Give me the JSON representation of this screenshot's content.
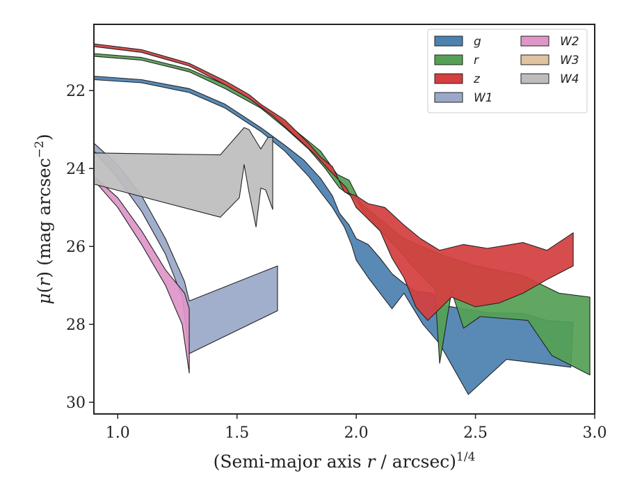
{
  "chart_data": {
    "type": "area",
    "title": "",
    "xlabel": "(Semi-major axis r / arcsec)^1/4",
    "ylabel": "μ(r) (mag arcsec^−2)",
    "xlim": [
      0.9,
      3.0
    ],
    "ylim": [
      30.3,
      20.3
    ],
    "y_inverted": true,
    "grid": false,
    "legend": {
      "placement": "upper-right",
      "columns": 2
    },
    "x_ticks": [
      "1.0",
      "1.5",
      "2.0",
      "2.5",
      "3.0"
    ],
    "y_ticks": [
      "22",
      "24",
      "26",
      "28",
      "30"
    ],
    "series": [
      {
        "name": "g",
        "color": "#4c81b0",
        "upper": [
          [
            0.9,
            21.63
          ],
          [
            1.1,
            21.72
          ],
          [
            1.3,
            21.95
          ],
          [
            1.45,
            22.35
          ],
          [
            1.6,
            22.95
          ],
          [
            1.7,
            23.4
          ],
          [
            1.78,
            23.78
          ],
          [
            1.85,
            24.25
          ],
          [
            1.9,
            24.7
          ],
          [
            1.93,
            25.15
          ],
          [
            1.97,
            25.45
          ],
          [
            2.0,
            25.8
          ],
          [
            2.05,
            25.95
          ],
          [
            2.1,
            26.3
          ],
          [
            2.15,
            26.7
          ],
          [
            2.2,
            26.95
          ],
          [
            2.25,
            27.15
          ],
          [
            2.32,
            27.2
          ],
          [
            2.35,
            27.5
          ],
          [
            2.45,
            27.6
          ],
          [
            2.55,
            27.7
          ],
          [
            2.7,
            27.72
          ],
          [
            2.8,
            27.9
          ],
          [
            2.91,
            27.95
          ]
        ],
        "lower": [
          [
            0.9,
            21.72
          ],
          [
            1.1,
            21.8
          ],
          [
            1.3,
            22.05
          ],
          [
            1.45,
            22.45
          ],
          [
            1.6,
            23.05
          ],
          [
            1.7,
            23.55
          ],
          [
            1.8,
            24.2
          ],
          [
            1.85,
            24.6
          ],
          [
            1.9,
            25.0
          ],
          [
            1.95,
            25.5
          ],
          [
            1.98,
            25.95
          ],
          [
            2.0,
            26.35
          ],
          [
            2.05,
            26.8
          ],
          [
            2.1,
            27.2
          ],
          [
            2.15,
            27.6
          ],
          [
            2.2,
            27.2
          ],
          [
            2.28,
            28.0
          ],
          [
            2.35,
            28.5
          ],
          [
            2.47,
            29.8
          ],
          [
            2.63,
            28.9
          ],
          [
            2.9,
            29.1
          ]
        ]
      },
      {
        "name": "r",
        "color": "#55a055",
        "upper": [
          [
            0.9,
            21.05
          ],
          [
            1.1,
            21.15
          ],
          [
            1.3,
            21.45
          ],
          [
            1.45,
            21.85
          ],
          [
            1.55,
            22.2
          ],
          [
            1.65,
            22.6
          ],
          [
            1.75,
            23.05
          ],
          [
            1.85,
            23.55
          ],
          [
            1.92,
            24.15
          ],
          [
            1.97,
            24.3
          ],
          [
            2.02,
            24.9
          ],
          [
            2.1,
            25.3
          ],
          [
            2.2,
            25.8
          ],
          [
            2.35,
            26.2
          ],
          [
            2.5,
            26.5
          ],
          [
            2.7,
            26.75
          ],
          [
            2.85,
            27.2
          ],
          [
            2.98,
            27.3
          ]
        ],
        "lower": [
          [
            0.9,
            21.12
          ],
          [
            1.1,
            21.22
          ],
          [
            1.3,
            21.52
          ],
          [
            1.45,
            21.95
          ],
          [
            1.6,
            22.45
          ],
          [
            1.7,
            22.95
          ],
          [
            1.8,
            23.5
          ],
          [
            1.87,
            24.0
          ],
          [
            1.93,
            24.5
          ],
          [
            2.0,
            24.8
          ],
          [
            2.05,
            25.3
          ],
          [
            2.1,
            25.6
          ],
          [
            2.18,
            26.1
          ],
          [
            2.25,
            26.6
          ],
          [
            2.33,
            27.1
          ],
          [
            2.35,
            29.0
          ],
          [
            2.4,
            27.15
          ],
          [
            2.45,
            28.1
          ],
          [
            2.52,
            27.8
          ],
          [
            2.72,
            27.9
          ],
          [
            2.82,
            28.8
          ],
          [
            2.98,
            29.3
          ]
        ]
      },
      {
        "name": "z",
        "color": "#d43f3f",
        "upper": [
          [
            0.9,
            20.8
          ],
          [
            1.1,
            20.95
          ],
          [
            1.3,
            21.3
          ],
          [
            1.45,
            21.75
          ],
          [
            1.55,
            22.1
          ],
          [
            1.6,
            22.35
          ],
          [
            1.65,
            22.55
          ],
          [
            1.7,
            22.75
          ],
          [
            1.75,
            23.05
          ],
          [
            1.8,
            23.35
          ],
          [
            1.85,
            23.7
          ],
          [
            1.9,
            23.95
          ],
          [
            1.95,
            24.6
          ],
          [
            2.0,
            24.7
          ],
          [
            2.05,
            24.9
          ],
          [
            2.12,
            25.0
          ],
          [
            2.2,
            25.45
          ],
          [
            2.27,
            25.8
          ],
          [
            2.35,
            26.1
          ],
          [
            2.45,
            25.95
          ],
          [
            2.55,
            26.05
          ],
          [
            2.7,
            25.9
          ],
          [
            2.8,
            26.1
          ],
          [
            2.91,
            25.65
          ]
        ],
        "lower": [
          [
            0.9,
            20.87
          ],
          [
            1.1,
            21.02
          ],
          [
            1.3,
            21.37
          ],
          [
            1.45,
            21.85
          ],
          [
            1.55,
            22.2
          ],
          [
            1.65,
            22.65
          ],
          [
            1.75,
            23.2
          ],
          [
            1.82,
            23.6
          ],
          [
            1.88,
            24.0
          ],
          [
            1.92,
            24.25
          ],
          [
            1.96,
            24.5
          ],
          [
            2.0,
            25.0
          ],
          [
            2.05,
            25.3
          ],
          [
            2.1,
            25.6
          ],
          [
            2.15,
            26.3
          ],
          [
            2.2,
            26.8
          ],
          [
            2.25,
            27.55
          ],
          [
            2.3,
            27.9
          ],
          [
            2.4,
            27.3
          ],
          [
            2.5,
            27.55
          ],
          [
            2.6,
            27.45
          ],
          [
            2.7,
            27.2
          ],
          [
            2.8,
            26.85
          ],
          [
            2.91,
            26.5
          ]
        ]
      },
      {
        "name": "W1",
        "color": "#9aa9c8",
        "upper": [
          [
            0.9,
            23.35
          ],
          [
            1.0,
            23.9
          ],
          [
            1.1,
            24.7
          ],
          [
            1.2,
            25.8
          ],
          [
            1.28,
            26.9
          ],
          [
            1.3,
            27.4
          ],
          [
            1.67,
            26.5
          ]
        ],
        "lower": [
          [
            0.9,
            23.55
          ],
          [
            1.0,
            24.25
          ],
          [
            1.1,
            25.1
          ],
          [
            1.2,
            26.2
          ],
          [
            1.27,
            27.3
          ],
          [
            1.3,
            28.75
          ],
          [
            1.67,
            27.65
          ]
        ]
      },
      {
        "name": "W2",
        "color": "#df96c8",
        "upper": [
          [
            0.9,
            24.2
          ],
          [
            1.0,
            24.75
          ],
          [
            1.1,
            25.6
          ],
          [
            1.2,
            26.6
          ],
          [
            1.28,
            27.2
          ],
          [
            1.3,
            27.6
          ]
        ],
        "lower": [
          [
            0.9,
            24.3
          ],
          [
            1.0,
            25.0
          ],
          [
            1.1,
            25.95
          ],
          [
            1.2,
            27.0
          ],
          [
            1.27,
            28.0
          ],
          [
            1.3,
            29.25
          ]
        ]
      },
      {
        "name": "W3",
        "color": "#e0c39f",
        "upper": [],
        "lower": []
      },
      {
        "name": "W4",
        "color": "#bdbdbd",
        "upper": [
          [
            0.9,
            23.6
          ],
          [
            1.43,
            23.65
          ],
          [
            1.53,
            22.95
          ],
          [
            1.55,
            23.0
          ],
          [
            1.58,
            23.3
          ],
          [
            1.6,
            23.5
          ],
          [
            1.63,
            23.2
          ],
          [
            1.65,
            23.2
          ]
        ],
        "lower": [
          [
            0.9,
            24.4
          ],
          [
            1.43,
            25.25
          ],
          [
            1.51,
            24.75
          ],
          [
            1.53,
            23.9
          ],
          [
            1.55,
            24.6
          ],
          [
            1.58,
            25.5
          ],
          [
            1.6,
            24.5
          ],
          [
            1.62,
            24.55
          ],
          [
            1.65,
            25.05
          ]
        ]
      }
    ]
  }
}
